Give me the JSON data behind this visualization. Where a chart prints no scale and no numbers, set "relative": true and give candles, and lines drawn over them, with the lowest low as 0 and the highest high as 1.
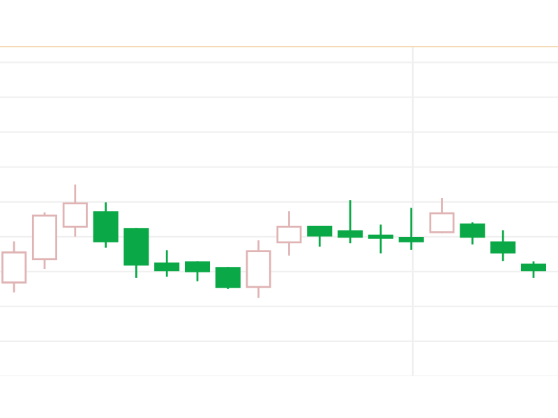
{
  "chart_data": {
    "type": "candlestick",
    "relative": true,
    "grid": "y",
    "categories": [
      null,
      null,
      null,
      null,
      null,
      null,
      null,
      null,
      null,
      null,
      null,
      null,
      null,
      null,
      null,
      null,
      null,
      null
    ],
    "ohlc": [
      [
        0.13,
        0.49,
        0.05,
        0.4
      ],
      [
        0.34,
        0.75,
        0.26,
        0.73
      ],
      [
        0.63,
        1,
        0.55,
        0.84
      ],
      [
        0.76,
        0.84,
        0.45,
        0.5
      ],
      [
        0.61,
        0.61,
        0.18,
        0.29
      ],
      [
        0.3,
        0.41,
        0.19,
        0.24
      ],
      [
        0.31,
        0.31,
        0.15,
        0.23
      ],
      [
        0.26,
        0.26,
        0.08,
        0.09
      ],
      [
        0.09,
        0.5,
        0,
        0.41
      ],
      [
        0.49,
        0.76,
        0.38,
        0.63
      ],
      [
        0.63,
        0.63,
        0.46,
        0.55
      ],
      [
        0.59,
        0.86,
        0.49,
        0.54
      ],
      [
        0.55,
        0.64,
        0.4,
        0.53
      ],
      [
        0.53,
        0.79,
        0.43,
        0.5
      ],
      [
        0.58,
        0.88,
        0.58,
        0.75
      ],
      [
        0.65,
        0.66,
        0.48,
        0.54
      ],
      [
        0.49,
        0.59,
        0.33,
        0.4
      ],
      [
        0.29,
        0.31,
        0.18,
        0.24
      ]
    ]
  }
}
